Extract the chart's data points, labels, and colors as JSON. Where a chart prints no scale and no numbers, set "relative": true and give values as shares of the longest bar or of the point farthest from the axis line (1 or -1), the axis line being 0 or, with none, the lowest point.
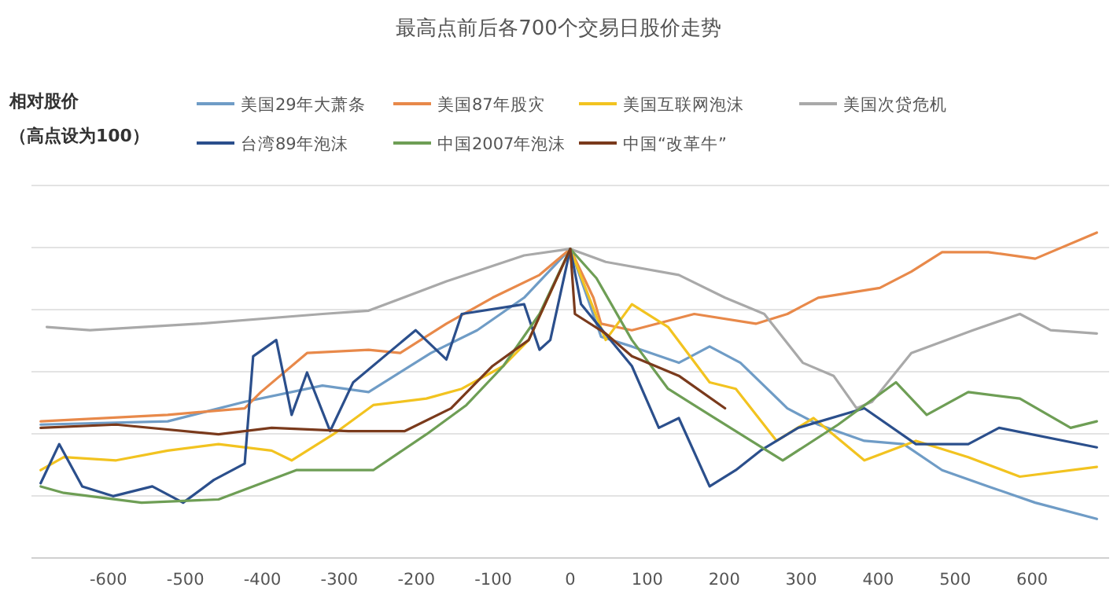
{
  "chart_data": {
    "type": "line",
    "title": "最高点前后各700个交易日股价走势",
    "annotations": [
      "相对股价（高点设为100）"
    ],
    "relative": true,
    "xlim": [
      -700,
      700
    ],
    "xticks": [
      -600,
      -500,
      -400,
      -300,
      -200,
      -100,
      0,
      100,
      200,
      300,
      400,
      500,
      600
    ],
    "grid": "y",
    "legend": "top",
    "marker": "none",
    "line_style": "solid",
    "series": [
      {
        "name": "美国29年大萧条",
        "color": "#6f9cc6",
        "x": [
          -688,
          -523,
          -423,
          -322,
          -262,
          -181,
          -121,
          -60,
          0,
          40,
          80,
          141,
          181,
          221,
          282,
          322,
          382,
          433,
          483,
          543,
          604,
          684
        ],
        "values": [
          0.41,
          0.42,
          0.48,
          0.53,
          0.51,
          0.63,
          0.7,
          0.8,
          0.95,
          0.68,
          0.65,
          0.6,
          0.65,
          0.6,
          0.46,
          0.41,
          0.36,
          0.35,
          0.27,
          0.22,
          0.17,
          0.12
        ]
      },
      {
        "name": "美国87年股灾",
        "color": "#e8894a",
        "x": [
          -688,
          -523,
          -423,
          -402,
          -342,
          -262,
          -221,
          -161,
          -101,
          -40,
          0,
          30,
          40,
          80,
          161,
          241,
          282,
          322,
          402,
          443,
          483,
          543,
          604,
          684
        ],
        "values": [
          0.42,
          0.44,
          0.46,
          0.51,
          0.63,
          0.64,
          0.63,
          0.72,
          0.8,
          0.87,
          0.95,
          0.8,
          0.72,
          0.7,
          0.75,
          0.72,
          0.75,
          0.8,
          0.83,
          0.88,
          0.94,
          0.94,
          0.92,
          1.0
        ]
      },
      {
        "name": "美国互联网泡沫",
        "color": "#f2c320",
        "x": [
          -688,
          -658,
          -590,
          -523,
          -457,
          -388,
          -362,
          -308,
          -256,
          -187,
          -141,
          -87,
          -54,
          0,
          46,
          80,
          127,
          181,
          215,
          268,
          316,
          382,
          449,
          517,
          584,
          684
        ],
        "values": [
          0.27,
          0.31,
          0.3,
          0.33,
          0.35,
          0.33,
          0.3,
          0.38,
          0.47,
          0.49,
          0.52,
          0.59,
          0.67,
          0.95,
          0.67,
          0.78,
          0.71,
          0.54,
          0.52,
          0.36,
          0.43,
          0.3,
          0.36,
          0.31,
          0.25,
          0.28
        ]
      },
      {
        "name": "美国次贷危机",
        "color": "#a9a9a9",
        "x": [
          -680,
          -624,
          -483,
          -322,
          -262,
          -161,
          -60,
          0,
          46,
          141,
          201,
          252,
          302,
          342,
          372,
          392,
          443,
          523,
          584,
          624,
          684
        ],
        "values": [
          0.71,
          0.7,
          0.72,
          0.75,
          0.76,
          0.85,
          0.93,
          0.95,
          0.91,
          0.87,
          0.8,
          0.75,
          0.6,
          0.56,
          0.46,
          0.48,
          0.63,
          0.7,
          0.75,
          0.7,
          0.69
        ]
      },
      {
        "name": "台湾89年泡沫",
        "color": "#2b4f8c",
        "x": [
          -688,
          -664,
          -634,
          -594,
          -543,
          -503,
          -463,
          -423,
          -412,
          -382,
          -362,
          -342,
          -312,
          -282,
          -201,
          -161,
          -141,
          -60,
          -40,
          -26,
          0,
          14,
          80,
          115,
          141,
          181,
          215,
          247,
          296,
          382,
          449,
          517,
          557,
          684
        ],
        "values": [
          0.23,
          0.35,
          0.22,
          0.19,
          0.22,
          0.17,
          0.24,
          0.29,
          0.62,
          0.67,
          0.44,
          0.57,
          0.39,
          0.54,
          0.7,
          0.61,
          0.75,
          0.78,
          0.64,
          0.67,
          0.95,
          0.78,
          0.59,
          0.4,
          0.43,
          0.22,
          0.27,
          0.33,
          0.4,
          0.46,
          0.35,
          0.35,
          0.4,
          0.34
        ]
      },
      {
        "name": "中国2007年泡沫",
        "color": "#6e9e55",
        "x": [
          -688,
          -658,
          -557,
          -457,
          -356,
          -256,
          -187,
          -135,
          -87,
          -40,
          0,
          34,
          80,
          127,
          181,
          235,
          276,
          348,
          423,
          463,
          517,
          584,
          650,
          684
        ],
        "values": [
          0.22,
          0.2,
          0.17,
          0.18,
          0.27,
          0.27,
          0.38,
          0.47,
          0.59,
          0.75,
          0.95,
          0.86,
          0.67,
          0.52,
          0.44,
          0.36,
          0.3,
          0.41,
          0.54,
          0.44,
          0.51,
          0.49,
          0.4,
          0.42
        ]
      },
      {
        "name": "中国“改革牛”",
        "color": "#7a3a1c",
        "x": [
          -688,
          -590,
          -457,
          -388,
          -288,
          -215,
          -155,
          -101,
          -54,
          0,
          6,
          46,
          80,
          141,
          201
        ],
        "values": [
          0.4,
          0.41,
          0.38,
          0.4,
          0.39,
          0.39,
          0.46,
          0.59,
          0.67,
          0.95,
          0.75,
          0.69,
          0.62,
          0.56,
          0.46
        ]
      }
    ]
  }
}
